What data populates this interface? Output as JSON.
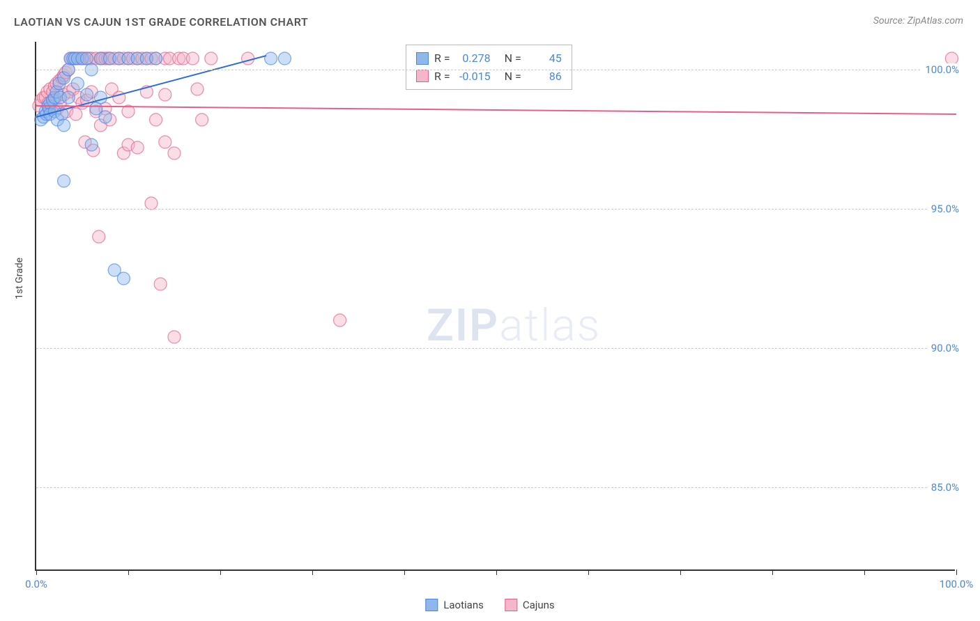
{
  "title": "LAOTIAN VS CAJUN 1ST GRADE CORRELATION CHART",
  "source": "Source: ZipAtlas.com",
  "ylabel": "1st Grade",
  "watermark_bold": "ZIP",
  "watermark_light": "atlas",
  "chart": {
    "type": "scatter",
    "xlim": [
      0,
      100
    ],
    "ylim": [
      82,
      101
    ],
    "x_ticks": [
      0,
      10,
      20,
      30,
      40,
      50,
      60,
      70,
      80,
      90,
      100
    ],
    "x_tick_labels": {
      "0": "0.0%",
      "100": "100.0%"
    },
    "y_ticks": [
      85,
      90,
      95,
      100
    ],
    "y_tick_labels": [
      "85.0%",
      "90.0%",
      "95.0%",
      "100.0%"
    ],
    "grid_color": "#cccccc",
    "background_color": "#ffffff",
    "marker_radius": 9,
    "marker_opacity": 0.45,
    "marker_stroke_width": 1.2,
    "series": [
      {
        "name": "Laotians",
        "color_fill": "#8fb8ea",
        "color_stroke": "#4a86e8",
        "R": "0.278",
        "N": "45",
        "trend": {
          "x1": 0,
          "y1": 98.3,
          "x2": 25,
          "y2": 100.5,
          "color": "#2b6cd6",
          "width": 2
        },
        "points": [
          [
            0.5,
            98.2
          ],
          [
            0.8,
            98.3
          ],
          [
            1.0,
            98.5
          ],
          [
            1.1,
            98.4
          ],
          [
            1.3,
            98.7
          ],
          [
            1.4,
            98.6
          ],
          [
            1.5,
            98.8
          ],
          [
            1.5,
            98.4
          ],
          [
            1.8,
            98.9
          ],
          [
            2.0,
            99.0
          ],
          [
            2.0,
            98.5
          ],
          [
            2.2,
            99.2
          ],
          [
            2.3,
            98.2
          ],
          [
            2.5,
            99.5
          ],
          [
            2.6,
            99.0
          ],
          [
            2.8,
            98.4
          ],
          [
            3.0,
            99.7
          ],
          [
            3.0,
            98.0
          ],
          [
            3.0,
            96.0
          ],
          [
            3.5,
            100.0
          ],
          [
            3.5,
            99.0
          ],
          [
            3.7,
            100.4
          ],
          [
            4.0,
            100.4
          ],
          [
            4.2,
            100.4
          ],
          [
            4.5,
            99.5
          ],
          [
            4.5,
            100.4
          ],
          [
            5.0,
            100.4
          ],
          [
            5.5,
            100.4
          ],
          [
            5.5,
            99.1
          ],
          [
            6.0,
            100.0
          ],
          [
            6.0,
            97.3
          ],
          [
            6.5,
            98.6
          ],
          [
            7.0,
            100.4
          ],
          [
            7.0,
            99.0
          ],
          [
            7.5,
            98.3
          ],
          [
            8.0,
            100.4
          ],
          [
            8.5,
            92.8
          ],
          [
            9.0,
            100.4
          ],
          [
            9.5,
            92.5
          ],
          [
            10.0,
            100.4
          ],
          [
            11.0,
            100.4
          ],
          [
            12.0,
            100.4
          ],
          [
            13.0,
            100.4
          ],
          [
            25.5,
            100.4
          ],
          [
            27.0,
            100.4
          ]
        ]
      },
      {
        "name": "Cajuns",
        "color_fill": "#f4b6c8",
        "color_stroke": "#e85d8a",
        "R": "-0.015",
        "N": "86",
        "trend": {
          "x1": 0,
          "y1": 98.7,
          "x2": 100,
          "y2": 98.4,
          "color": "#e85d8a",
          "width": 2
        },
        "points": [
          [
            0.3,
            98.7
          ],
          [
            0.5,
            98.9
          ],
          [
            0.8,
            99.0
          ],
          [
            1.0,
            99.0
          ],
          [
            1.2,
            99.2
          ],
          [
            1.3,
            98.8
          ],
          [
            1.5,
            99.3
          ],
          [
            1.6,
            98.7
          ],
          [
            1.8,
            99.2
          ],
          [
            2.0,
            99.4
          ],
          [
            2.0,
            98.9
          ],
          [
            2.2,
            99.5
          ],
          [
            2.3,
            98.6
          ],
          [
            2.5,
            99.6
          ],
          [
            2.6,
            98.8
          ],
          [
            2.8,
            99.7
          ],
          [
            3.0,
            99.8
          ],
          [
            3.0,
            99.1
          ],
          [
            3.2,
            99.9
          ],
          [
            3.3,
            98.5
          ],
          [
            3.5,
            100.0
          ],
          [
            3.6,
            99.2
          ],
          [
            3.8,
            100.4
          ],
          [
            4.0,
            100.4
          ],
          [
            4.0,
            99.3
          ],
          [
            4.2,
            100.4
          ],
          [
            4.3,
            98.4
          ],
          [
            4.5,
            100.4
          ],
          [
            4.6,
            99.0
          ],
          [
            4.8,
            100.4
          ],
          [
            5.0,
            100.4
          ],
          [
            5.0,
            98.8
          ],
          [
            5.2,
            100.4
          ],
          [
            5.3,
            97.4
          ],
          [
            5.5,
            100.4
          ],
          [
            5.5,
            98.9
          ],
          [
            5.8,
            100.4
          ],
          [
            6.0,
            100.4
          ],
          [
            6.0,
            99.2
          ],
          [
            6.2,
            97.1
          ],
          [
            6.5,
            100.4
          ],
          [
            6.5,
            98.5
          ],
          [
            6.8,
            94.0
          ],
          [
            7.0,
            100.4
          ],
          [
            7.0,
            98.0
          ],
          [
            7.2,
            100.4
          ],
          [
            7.5,
            100.4
          ],
          [
            7.5,
            98.6
          ],
          [
            7.8,
            100.4
          ],
          [
            8.0,
            100.4
          ],
          [
            8.0,
            98.2
          ],
          [
            8.2,
            99.3
          ],
          [
            8.5,
            100.4
          ],
          [
            9.0,
            100.4
          ],
          [
            9.0,
            99.0
          ],
          [
            9.5,
            100.4
          ],
          [
            9.5,
            97.0
          ],
          [
            10.0,
            100.4
          ],
          [
            10.0,
            98.5
          ],
          [
            10.0,
            97.3
          ],
          [
            10.5,
            100.4
          ],
          [
            11.0,
            97.2
          ],
          [
            11.0,
            100.4
          ],
          [
            11.5,
            100.4
          ],
          [
            12.0,
            99.2
          ],
          [
            12.0,
            100.4
          ],
          [
            12.5,
            100.4
          ],
          [
            12.5,
            95.2
          ],
          [
            13.0,
            100.4
          ],
          [
            13.0,
            98.2
          ],
          [
            13.5,
            92.3
          ],
          [
            14.0,
            100.4
          ],
          [
            14.0,
            99.1
          ],
          [
            14.0,
            97.4
          ],
          [
            14.5,
            100.4
          ],
          [
            15.0,
            97.0
          ],
          [
            15.0,
            90.4
          ],
          [
            15.5,
            100.4
          ],
          [
            16.0,
            100.4
          ],
          [
            17.0,
            100.4
          ],
          [
            17.5,
            99.3
          ],
          [
            18.0,
            98.2
          ],
          [
            19.0,
            100.4
          ],
          [
            23.0,
            100.4
          ],
          [
            33.0,
            91.0
          ],
          [
            99.5,
            100.4
          ]
        ]
      }
    ]
  },
  "stats_box": {
    "rows": [
      {
        "swatch_fill": "#8fb8ea",
        "swatch_stroke": "#4a86e8",
        "r_label": "R =",
        "r_val": "0.278",
        "n_label": "N =",
        "n_val": "45"
      },
      {
        "swatch_fill": "#f4b6c8",
        "swatch_stroke": "#e85d8a",
        "r_label": "R =",
        "r_val": "-0.015",
        "n_label": "N =",
        "n_val": "86"
      }
    ]
  },
  "bottom_legend": [
    {
      "swatch_fill": "#8fb8ea",
      "swatch_stroke": "#4a86e8",
      "label": "Laotians"
    },
    {
      "swatch_fill": "#f4b6c8",
      "swatch_stroke": "#e85d8a",
      "label": "Cajuns"
    }
  ]
}
